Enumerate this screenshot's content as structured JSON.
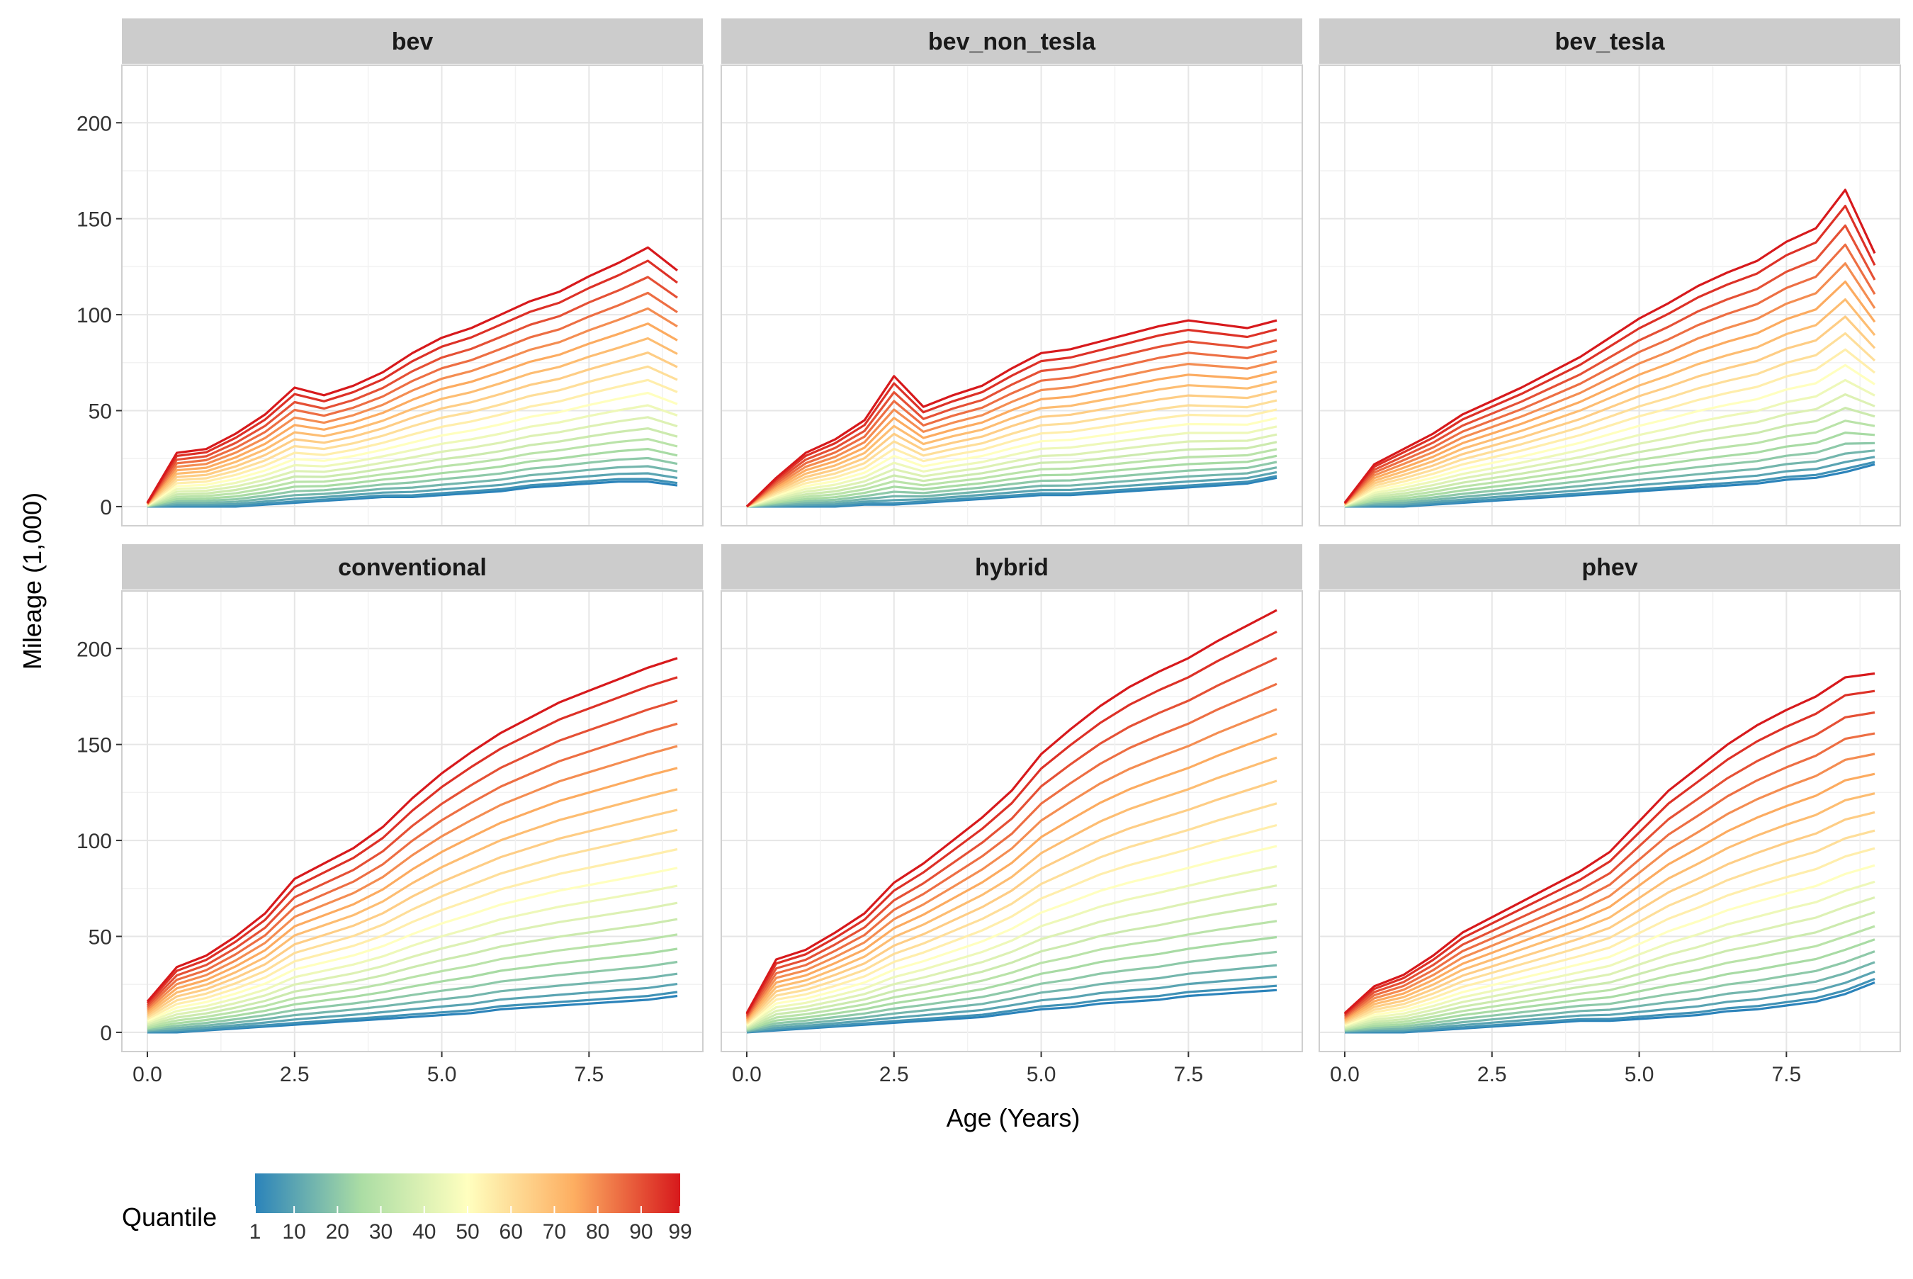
{
  "chart_data": {
    "type": "line",
    "layout": "facet-grid 2x3",
    "xlabel": "Age (Years)",
    "ylabel": "Mileage (1,000)",
    "xlim": [
      0,
      9
    ],
    "ylim": [
      0,
      230
    ],
    "x_ticks": [
      0.0,
      2.5,
      5.0,
      7.5
    ],
    "x_tick_labels": [
      "0.0",
      "2.5",
      "5.0",
      "7.5"
    ],
    "y_ticks": [
      0,
      50,
      100,
      150,
      200
    ],
    "y_tick_labels": [
      "0",
      "50",
      "100",
      "150",
      "200"
    ],
    "grid": true,
    "x": [
      0,
      0.5,
      1,
      1.5,
      2,
      2.5,
      3,
      3.5,
      4,
      4.5,
      5,
      5.5,
      6,
      6.5,
      7,
      7.5,
      8,
      8.5,
      9
    ],
    "quantiles": [
      1,
      5,
      10,
      15,
      20,
      25,
      30,
      35,
      40,
      45,
      50,
      55,
      60,
      65,
      70,
      75,
      80,
      85,
      90,
      95,
      99
    ],
    "legend": {
      "title": "Quantile",
      "position": "bottom-left",
      "type": "colorbar",
      "tick_labels": [
        "1",
        "10",
        "20",
        "30",
        "40",
        "50",
        "60",
        "70",
        "80",
        "90",
        "99"
      ],
      "tick_values": [
        1,
        10,
        20,
        30,
        40,
        50,
        60,
        70,
        80,
        90,
        99
      ],
      "colors": [
        "#2b83ba",
        "#abdda4",
        "#ffffbf",
        "#fdae61",
        "#d7191c"
      ]
    },
    "panels": [
      {
        "name": "bev",
        "q01": [
          0,
          0,
          0,
          0,
          1,
          2,
          3,
          4,
          5,
          5,
          6,
          7,
          8,
          10,
          11,
          12,
          13,
          13,
          11
        ],
        "q99": [
          2,
          28,
          30,
          38,
          48,
          62,
          58,
          63,
          70,
          80,
          88,
          93,
          100,
          107,
          112,
          120,
          127,
          135,
          123
        ]
      },
      {
        "name": "bev_non_tesla",
        "q01": [
          0,
          0,
          0,
          0,
          1,
          1,
          2,
          3,
          4,
          5,
          6,
          6,
          7,
          8,
          9,
          10,
          11,
          12,
          15
        ],
        "q99": [
          0,
          15,
          28,
          35,
          45,
          68,
          52,
          58,
          63,
          72,
          80,
          82,
          86,
          90,
          94,
          97,
          95,
          93,
          97
        ]
      },
      {
        "name": "bev_tesla",
        "q01": [
          0,
          0,
          0,
          1,
          2,
          3,
          4,
          5,
          6,
          7,
          8,
          9,
          10,
          11,
          12,
          14,
          15,
          18,
          22
        ],
        "q99": [
          2,
          22,
          30,
          38,
          48,
          55,
          62,
          70,
          78,
          88,
          98,
          106,
          115,
          122,
          128,
          138,
          145,
          165,
          132
        ]
      },
      {
        "name": "conventional",
        "q01": [
          0,
          0,
          1,
          2,
          3,
          4,
          5,
          6,
          7,
          8,
          9,
          10,
          12,
          13,
          14,
          15,
          16,
          17,
          19
        ],
        "q99": [
          16,
          34,
          40,
          50,
          62,
          80,
          88,
          96,
          107,
          122,
          135,
          146,
          156,
          164,
          172,
          178,
          184,
          190,
          195
        ]
      },
      {
        "name": "hybrid",
        "q01": [
          0,
          1,
          2,
          3,
          4,
          5,
          6,
          7,
          8,
          10,
          12,
          13,
          15,
          16,
          17,
          19,
          20,
          21,
          22
        ],
        "q99": [
          10,
          38,
          43,
          52,
          62,
          78,
          88,
          100,
          112,
          126,
          145,
          158,
          170,
          180,
          188,
          195,
          204,
          212,
          220
        ]
      },
      {
        "name": "phev",
        "q01": [
          0,
          0,
          0,
          1,
          2,
          3,
          4,
          5,
          6,
          6,
          7,
          8,
          9,
          11,
          12,
          14,
          16,
          20,
          26
        ],
        "q99": [
          10,
          24,
          30,
          40,
          52,
          60,
          68,
          76,
          84,
          94,
          110,
          126,
          138,
          150,
          160,
          168,
          175,
          185,
          187
        ]
      }
    ]
  }
}
